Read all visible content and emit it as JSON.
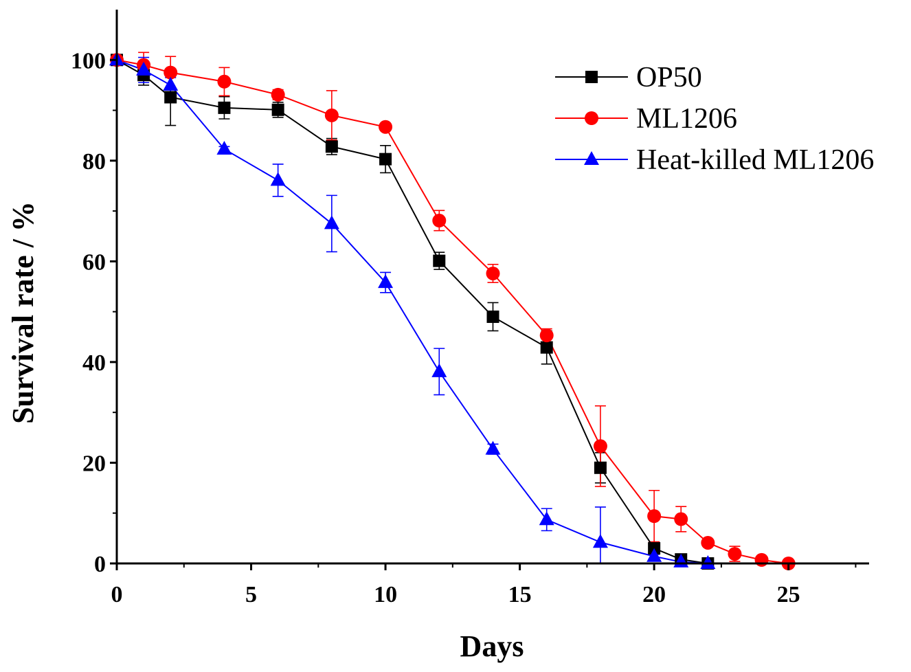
{
  "chart_data": {
    "type": "line",
    "title": "",
    "xlabel": "Days",
    "ylabel": "Survival rate / %",
    "xlim": [
      0,
      28
    ],
    "ylim": [
      0,
      110
    ],
    "x_ticks": [
      0,
      5,
      10,
      15,
      20,
      25
    ],
    "y_ticks": [
      0,
      20,
      40,
      60,
      80,
      100
    ],
    "grid": false,
    "legend_position": "top-right",
    "series": [
      {
        "name": "OP50",
        "color": "#000000",
        "marker": "square",
        "points": [
          {
            "x": 0,
            "y": 100,
            "err": 0
          },
          {
            "x": 1,
            "y": 97,
            "err": 2
          },
          {
            "x": 2,
            "y": 92.6,
            "err": 5.6
          },
          {
            "x": 4,
            "y": 90.5,
            "err": 2.2
          },
          {
            "x": 6,
            "y": 90.1,
            "err": 1.5
          },
          {
            "x": 8,
            "y": 82.8,
            "err": 1.6
          },
          {
            "x": 10,
            "y": 80.3,
            "err": 2.7
          },
          {
            "x": 12,
            "y": 60.1,
            "err": 1.7
          },
          {
            "x": 14,
            "y": 49,
            "err": 2.8
          },
          {
            "x": 16,
            "y": 42.9,
            "err": 3.3
          },
          {
            "x": 18,
            "y": 19,
            "err": 3
          },
          {
            "x": 20,
            "y": 3,
            "err": 0.5
          },
          {
            "x": 21,
            "y": 0.8,
            "err": 0.3
          },
          {
            "x": 22,
            "y": 0,
            "err": 0
          }
        ]
      },
      {
        "name": "ML1206",
        "color": "#ff0000",
        "marker": "circle",
        "points": [
          {
            "x": 0,
            "y": 100,
            "err": 0
          },
          {
            "x": 1,
            "y": 99,
            "err": 2.5
          },
          {
            "x": 2,
            "y": 97.5,
            "err": 3.2
          },
          {
            "x": 4,
            "y": 95.7,
            "err": 2.8
          },
          {
            "x": 6,
            "y": 93.1,
            "err": 1
          },
          {
            "x": 8,
            "y": 89,
            "err": 4.9
          },
          {
            "x": 10,
            "y": 86.7,
            "err": 0.6
          },
          {
            "x": 12,
            "y": 68.1,
            "err": 2
          },
          {
            "x": 14,
            "y": 57.6,
            "err": 1.8
          },
          {
            "x": 16,
            "y": 45.3,
            "err": 1.3
          },
          {
            "x": 18,
            "y": 23.3,
            "err": 8
          },
          {
            "x": 20,
            "y": 9.4,
            "err": 5.1
          },
          {
            "x": 21,
            "y": 8.8,
            "err": 2.5
          },
          {
            "x": 22,
            "y": 4.1,
            "err": 0.6
          },
          {
            "x": 23,
            "y": 1.9,
            "err": 1.5
          },
          {
            "x": 24,
            "y": 0.7,
            "err": 0.3
          },
          {
            "x": 25,
            "y": 0,
            "err": 0
          }
        ]
      },
      {
        "name": "Heat-killed ML1206",
        "color": "#0000ff",
        "marker": "triangle",
        "points": [
          {
            "x": 0,
            "y": 100,
            "err": 0
          },
          {
            "x": 1,
            "y": 98,
            "err": 2.5
          },
          {
            "x": 2,
            "y": 95,
            "err": 1.5
          },
          {
            "x": 4,
            "y": 82.3,
            "err": 0.5
          },
          {
            "x": 6,
            "y": 76.1,
            "err": 3.2
          },
          {
            "x": 8,
            "y": 67.5,
            "err": 5.6
          },
          {
            "x": 10,
            "y": 55.8,
            "err": 2
          },
          {
            "x": 12,
            "y": 38.1,
            "err": 4.6
          },
          {
            "x": 14,
            "y": 22.7,
            "err": 1
          },
          {
            "x": 16,
            "y": 8.7,
            "err": 2.2
          },
          {
            "x": 18,
            "y": 4.2,
            "err": 7
          },
          {
            "x": 20,
            "y": 1.4,
            "err": 0.4
          },
          {
            "x": 21,
            "y": 0.3,
            "err": 0.2
          },
          {
            "x": 22,
            "y": 0,
            "err": 0
          }
        ]
      }
    ]
  }
}
